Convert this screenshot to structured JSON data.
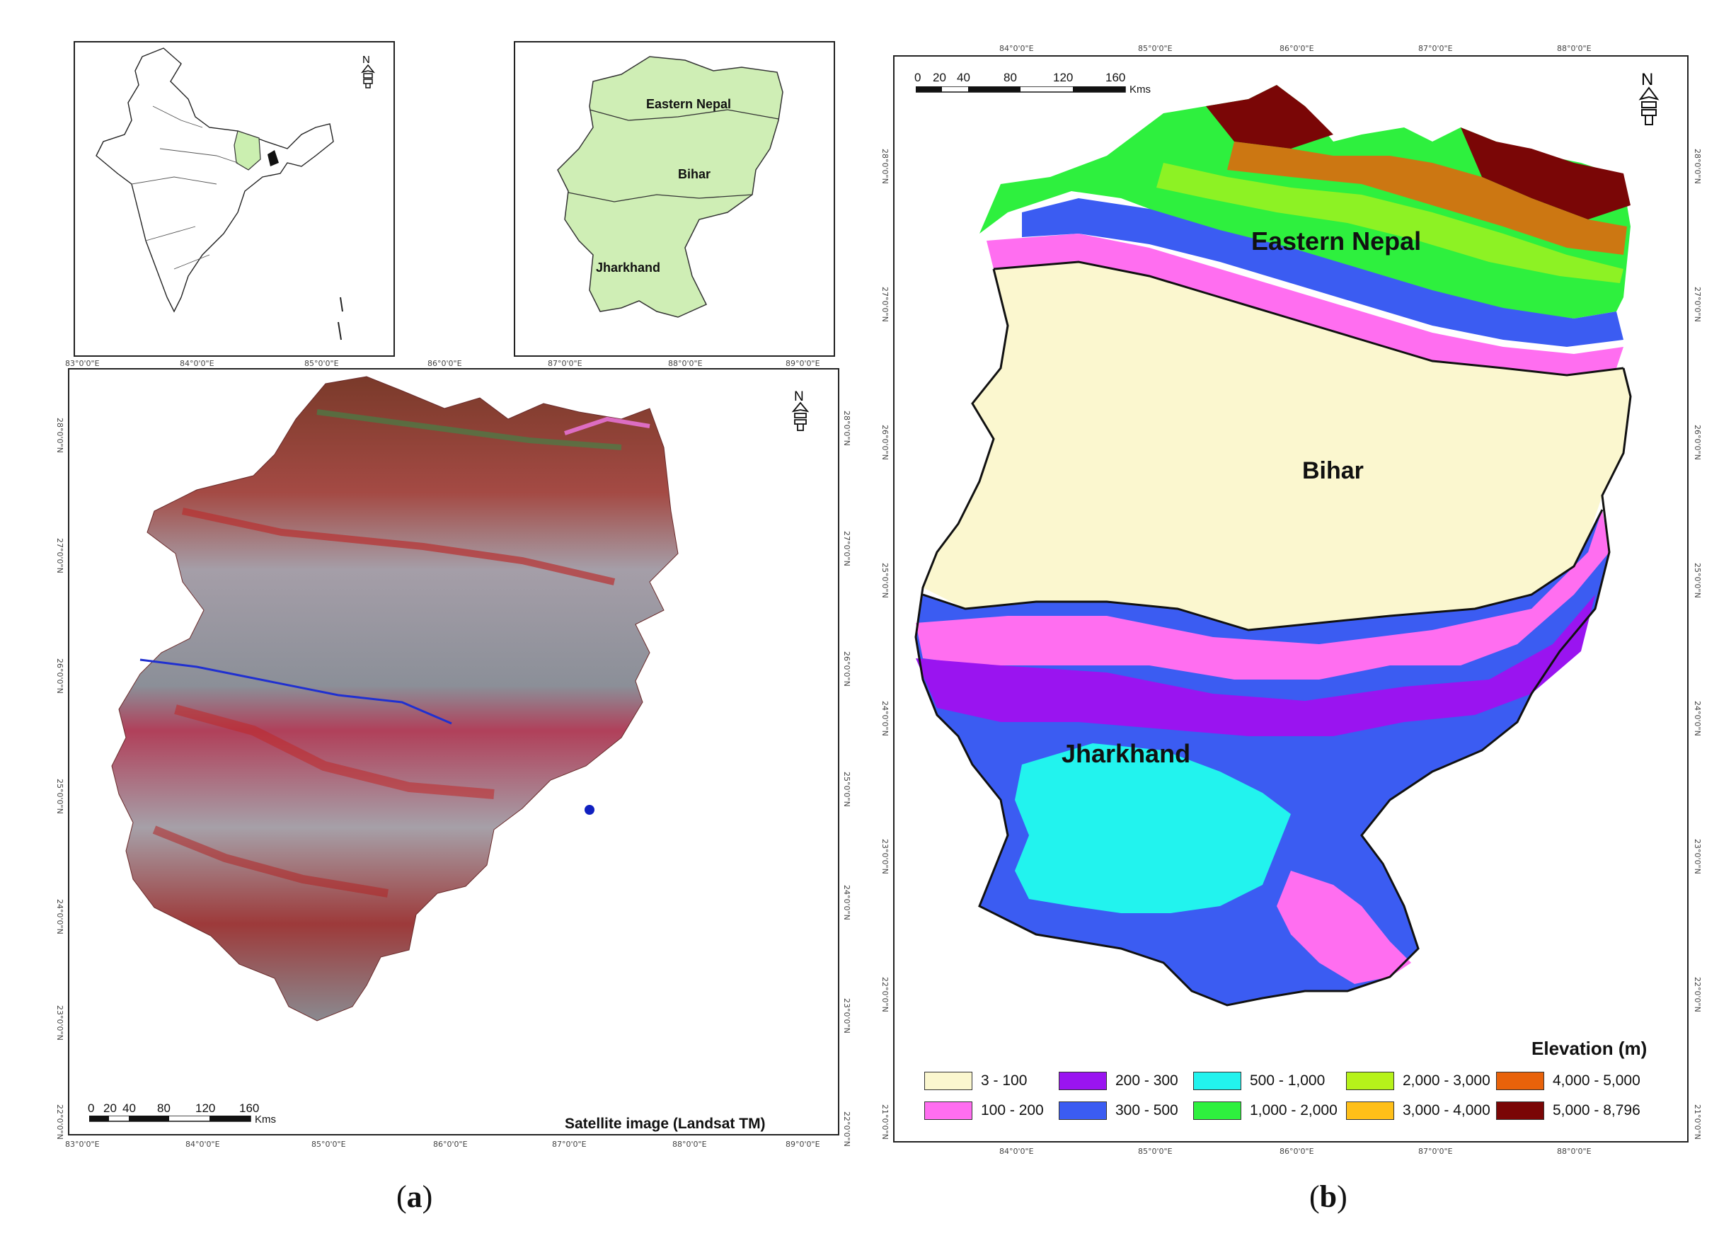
{
  "panel_a": {
    "label": "a",
    "title": "Satellite image (Landsat TM)",
    "scale": {
      "ticks": [
        "0",
        "20",
        "40",
        "80",
        "120",
        "160"
      ],
      "unit": "Kms"
    },
    "north": "N",
    "inset_regions": {
      "eastern_nepal": "Eastern Nepal",
      "bihar": "Bihar",
      "jharkhand": "Jharkhand"
    },
    "x_ticks": [
      "83°0'0\"E",
      "84°0'0\"E",
      "85°0'0\"E",
      "86°0'0\"E",
      "87°0'0\"E",
      "88°0'0\"E",
      "89°0'0\"E"
    ],
    "y_ticks": [
      "28°0'0\"N",
      "27°0'0\"N",
      "26°0'0\"N",
      "25°0'0\"N",
      "24°0'0\"N",
      "23°0'0\"N",
      "22°0'0\"N"
    ]
  },
  "panel_b": {
    "label": "b",
    "regions": {
      "eastern_nepal": "Eastern Nepal",
      "bihar": "Bihar",
      "jharkhand": "Jharkhand"
    },
    "scale": {
      "ticks": [
        "0",
        "20",
        "40",
        "80",
        "120",
        "160"
      ],
      "unit": "Kms"
    },
    "north": "N",
    "x_ticks": [
      "84°0'0\"E",
      "85°0'0\"E",
      "86°0'0\"E",
      "87°0'0\"E",
      "88°0'0\"E"
    ],
    "y_ticks": [
      "28°0'0\"N",
      "27°0'0\"N",
      "26°0'0\"N",
      "25°0'0\"N",
      "24°0'0\"N",
      "23°0'0\"N",
      "22°0'0\"N",
      "21°0'0\"N"
    ],
    "legend": {
      "title": "Elevation (m)",
      "items": [
        {
          "label": "3 - 100",
          "color": "#fbf7cf"
        },
        {
          "label": "100 - 200",
          "color": "#ff6ef0"
        },
        {
          "label": "200 - 300",
          "color": "#9a14f0"
        },
        {
          "label": "300 - 500",
          "color": "#3b5cf2"
        },
        {
          "label": "500 - 1,000",
          "color": "#22f3ee"
        },
        {
          "label": "1,000 - 2,000",
          "color": "#2ef03e"
        },
        {
          "label": "2,000 - 3,000",
          "color": "#b6f21a"
        },
        {
          "label": "3,000 - 4,000",
          "color": "#ffbf18"
        },
        {
          "label": "4,000 - 5,000",
          "color": "#e8620a"
        },
        {
          "label": "5,000 - 8,796",
          "color": "#7a0606"
        }
      ]
    }
  }
}
